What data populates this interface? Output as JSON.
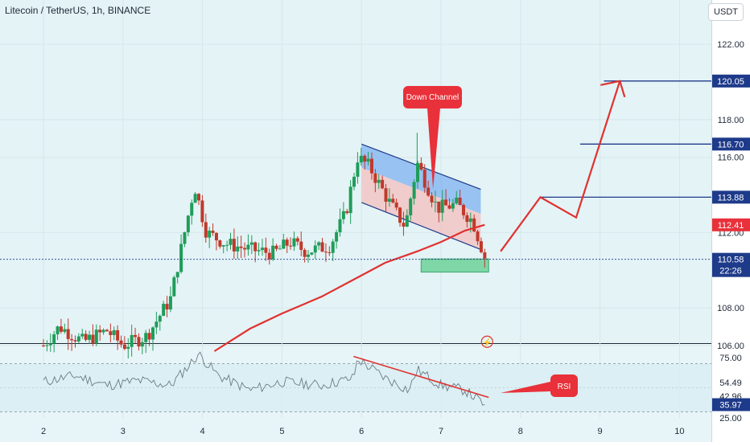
{
  "header": {
    "title": "Litecoin / TetherUS, 1h, BINANCE",
    "currency_button": "USDT"
  },
  "colors": {
    "background": "#e4f3f6",
    "up": "#1f9d5a",
    "down": "#c0392b",
    "ma": "#e0312f",
    "level_line": "#1e3a8a",
    "channel_fill": "#7fb2f0",
    "channel_inner_fill": "#f2c2c2",
    "target_zone": "#7fd6a6"
  },
  "annotations": {
    "down_channel_label": "Down Channel",
    "rsi_label": "RSI"
  },
  "chart_data": {
    "type": "candlestick",
    "title": "Litecoin / TetherUS, 1h, BINANCE",
    "x_tick_labels": [
      "2",
      "3",
      "4",
      "5",
      "6",
      "7",
      "8",
      "9",
      "10"
    ],
    "price_axis_ticks": [
      "122.00",
      "118.00",
      "116.00",
      "112.00",
      "108.00",
      "106.00"
    ],
    "ylim": [
      105.7,
      123.5
    ],
    "price_levels": [
      {
        "label": "120.05",
        "value": 120.05,
        "style": "dark"
      },
      {
        "label": "116.70",
        "value": 116.7,
        "style": "dark"
      },
      {
        "label": "113.88",
        "value": 113.88,
        "style": "dark"
      },
      {
        "label": "112.41",
        "value": 112.41,
        "style": "red"
      },
      {
        "label": "110.58",
        "value": 110.58,
        "style": "dark-current",
        "countdown": "22:26"
      }
    ],
    "price_path": [
      [
        2.0,
        106.0
      ],
      [
        2.2,
        107.0
      ],
      [
        2.5,
        106.2
      ],
      [
        2.8,
        106.8
      ],
      [
        3.0,
        106.0
      ],
      [
        3.3,
        106.5
      ],
      [
        3.6,
        108.5
      ],
      [
        3.75,
        111.5
      ],
      [
        3.9,
        114.5
      ],
      [
        4.05,
        112.0
      ],
      [
        4.3,
        111.4
      ],
      [
        4.6,
        111.1
      ],
      [
        4.9,
        110.9
      ],
      [
        5.1,
        111.5
      ],
      [
        5.3,
        111.0
      ],
      [
        5.6,
        111.3
      ],
      [
        5.8,
        113.0
      ],
      [
        5.95,
        116.0
      ],
      [
        6.1,
        115.5
      ],
      [
        6.35,
        113.6
      ],
      [
        6.55,
        112.3
      ],
      [
        6.7,
        115.7
      ],
      [
        6.95,
        113.3
      ],
      [
        7.2,
        113.5
      ],
      [
        7.4,
        112.6
      ],
      [
        7.55,
        110.7
      ]
    ],
    "moving_average": [
      [
        4.15,
        105.7
      ],
      [
        4.6,
        106.9
      ],
      [
        5.0,
        107.7
      ],
      [
        5.5,
        108.6
      ],
      [
        5.9,
        109.5
      ],
      [
        6.3,
        110.4
      ],
      [
        6.7,
        111.0
      ],
      [
        7.0,
        111.5
      ],
      [
        7.3,
        112.1
      ],
      [
        7.55,
        112.41
      ]
    ],
    "projection": [
      [
        7.75,
        111.0
      ],
      [
        8.25,
        113.88
      ],
      [
        8.7,
        112.8
      ],
      [
        9.25,
        120.05
      ]
    ],
    "down_channel": {
      "upper": [
        [
          6.0,
          116.7
        ],
        [
          7.5,
          114.3
        ]
      ],
      "lower": [
        [
          6.0,
          113.6
        ],
        [
          7.5,
          111.1
        ]
      ]
    },
    "target_zone": {
      "x": [
        6.75,
        7.6
      ],
      "y": [
        109.9,
        110.6
      ]
    },
    "rsi": {
      "ticks": [
        "75.00",
        "54.49",
        "42.96",
        "35.97",
        "25.00"
      ],
      "ylim": [
        25,
        85
      ],
      "current": 35.97,
      "bands": [
        70,
        30
      ],
      "path": [
        [
          2.0,
          55
        ],
        [
          2.4,
          60
        ],
        [
          2.8,
          52
        ],
        [
          3.2,
          56
        ],
        [
          3.6,
          52
        ],
        [
          3.85,
          70
        ],
        [
          3.95,
          78
        ],
        [
          4.2,
          60
        ],
        [
          4.6,
          48
        ],
        [
          5.0,
          55
        ],
        [
          5.5,
          52
        ],
        [
          5.9,
          58
        ],
        [
          5.95,
          74
        ],
        [
          6.3,
          58
        ],
        [
          6.6,
          48
        ],
        [
          6.7,
          65
        ],
        [
          7.0,
          52
        ],
        [
          7.3,
          48
        ],
        [
          7.55,
          35.97
        ]
      ],
      "divergence_line": [
        [
          5.9,
          76
        ],
        [
          7.6,
          42
        ]
      ]
    }
  }
}
